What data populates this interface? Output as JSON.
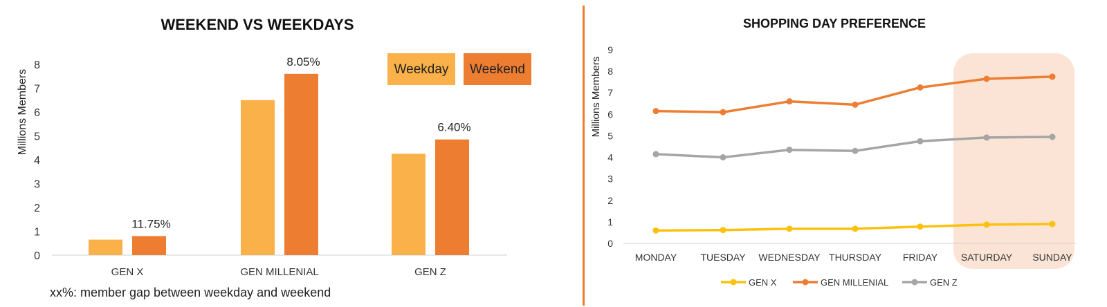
{
  "colors": {
    "weekday": "#fbb149",
    "weekend": "#ed7d31",
    "genx": "#fbc10d",
    "genmillenial": "#ed7d31",
    "genz": "#a5a5a5",
    "highlight": "#fbe4d6",
    "divider": "#ed7d31"
  },
  "chart_data": [
    {
      "type": "bar",
      "title": "WEEKEND VS WEEKDAYS",
      "ylabel": "Millions Members",
      "xlabel": "",
      "ylim": [
        0,
        8
      ],
      "yticks": [
        "0",
        "1",
        "2",
        "3",
        "4",
        "5",
        "6",
        "7",
        "8"
      ],
      "categories": [
        "GEN X",
        "GEN MILLENIAL",
        "GEN Z"
      ],
      "series": [
        {
          "name": "Weekday",
          "values": [
            0.65,
            6.5,
            4.25
          ]
        },
        {
          "name": "Weekend",
          "values": [
            0.8,
            7.6,
            4.85
          ]
        }
      ],
      "data_labels": [
        "11.75%",
        "8.05%",
        "6.40%"
      ],
      "note": "xx%: member gap between weekday and weekend",
      "legend": "top-right",
      "grid": false
    },
    {
      "type": "line",
      "title": "SHOPPING DAY PREFERENCE",
      "ylabel": "Millions Members",
      "xlabel": "",
      "ylim": [
        0,
        9
      ],
      "yticks": [
        "0",
        "1",
        "2",
        "3",
        "4",
        "5",
        "6",
        "7",
        "8",
        "9"
      ],
      "categories": [
        "MONDAY",
        "TUESDAY",
        "WEDNESDAY",
        "THURSDAY",
        "FRIDAY",
        "SATURDAY",
        "SUNDAY"
      ],
      "series": [
        {
          "name": "GEN X",
          "values": [
            0.6,
            0.62,
            0.68,
            0.68,
            0.78,
            0.87,
            0.9
          ]
        },
        {
          "name": "GEN MILLENIAL",
          "values": [
            6.15,
            6.1,
            6.6,
            6.45,
            7.25,
            7.65,
            7.75
          ]
        },
        {
          "name": "GEN Z",
          "values": [
            4.15,
            4.0,
            4.35,
            4.3,
            4.75,
            4.92,
            4.95
          ]
        }
      ],
      "highlight_categories": [
        "SATURDAY",
        "SUNDAY"
      ],
      "legend": "bottom",
      "grid": false
    }
  ]
}
